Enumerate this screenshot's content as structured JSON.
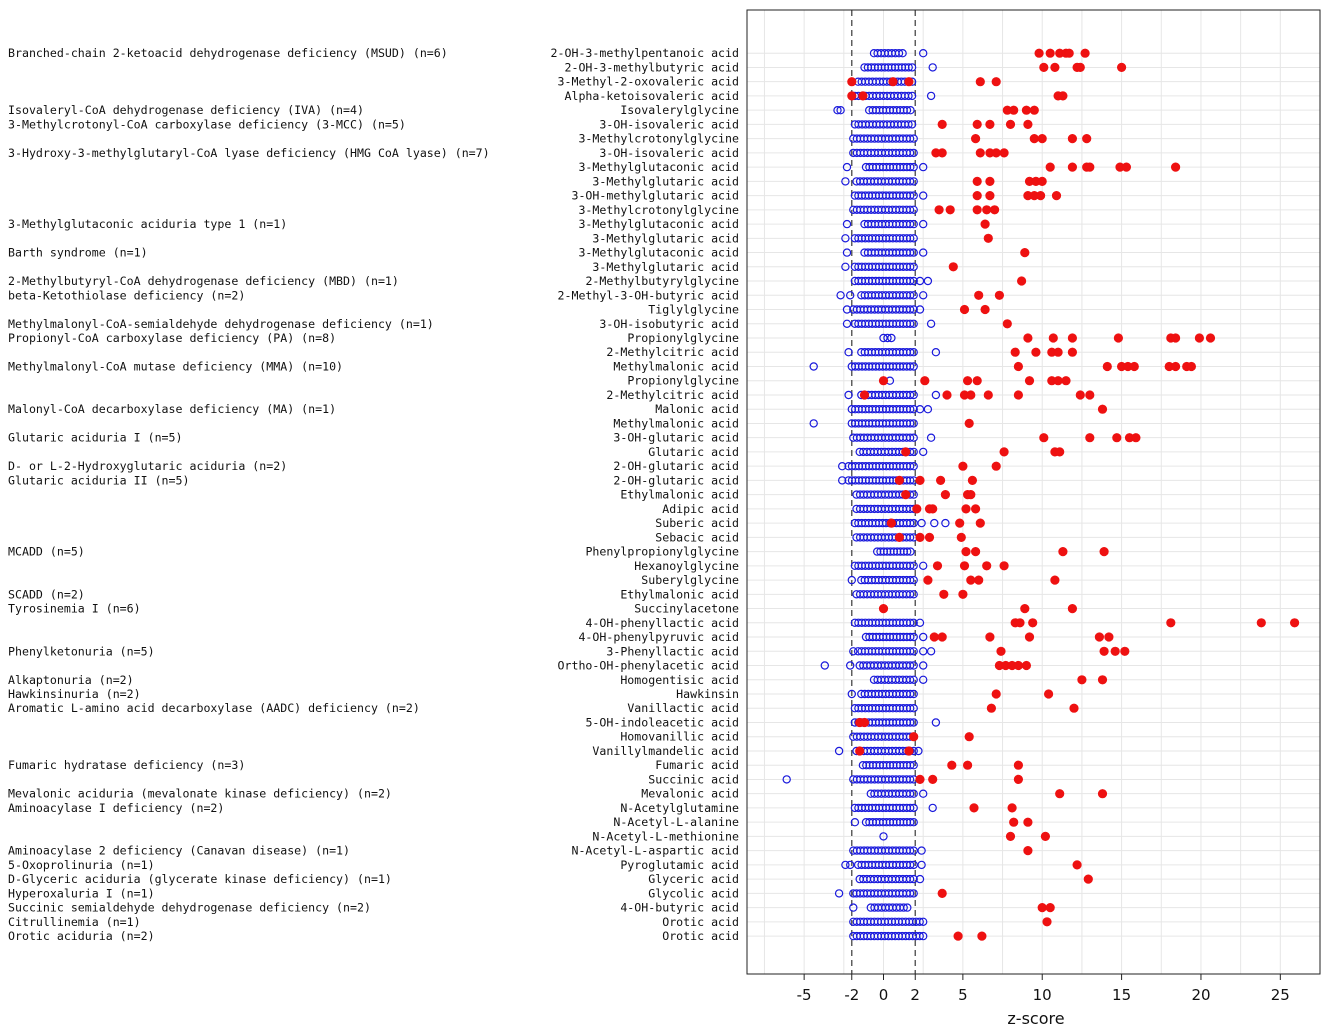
{
  "chart_data": {
    "type": "scatter",
    "xlabel": "z-score",
    "xticks": [
      -5,
      -2,
      0,
      2,
      5,
      10,
      15,
      20,
      25
    ],
    "xlim": [
      -8.6,
      27.5
    ],
    "threshold_lines": [
      -2,
      2
    ],
    "grid": true,
    "colors": {
      "control": "#1a1adc",
      "patient": "#ee1111",
      "grid": "#e6e6e6",
      "threshold": "#555555"
    },
    "groups": [
      {
        "name": "Branched-chain 2-ketoacid dehydrogenase deficiency (MSUD) (n=6)",
        "row": 0
      },
      {
        "name": "Isovaleryl-CoA dehydrogenase deficiency (IVA) (n=4)",
        "row": 4
      },
      {
        "name": "3-Methylcrotonyl-CoA carboxylase deficiency (3-MCC) (n=5)",
        "row": 5
      },
      {
        "name": "3-Hydroxy-3-methylglutaryl-CoA lyase deficiency (HMG CoA lyase) (n=7)",
        "row": 7
      },
      {
        "name": "3-Methylglutaconic aciduria type 1 (n=1)",
        "row": 12
      },
      {
        "name": "Barth syndrome (n=1)",
        "row": 14
      },
      {
        "name": "2-Methylbutyryl-CoA dehydrogenase deficiency (MBD) (n=1)",
        "row": 16
      },
      {
        "name": "beta-Ketothiolase deficiency (n=2)",
        "row": 17
      },
      {
        "name": "Methylmalonyl-CoA-semialdehyde dehydrogenase deficiency (n=1)",
        "row": 19
      },
      {
        "name": "Propionyl-CoA carboxylase deficiency (PA) (n=8)",
        "row": 20
      },
      {
        "name": "Methylmalonyl-CoA mutase deficiency (MMA)  (n=10)",
        "row": 22
      },
      {
        "name": "Malonyl-CoA decarboxylase deficiency (MA) (n=1)",
        "row": 25
      },
      {
        "name": "Glutaric aciduria I (n=5)",
        "row": 27
      },
      {
        "name": "D- or L-2-Hydroxyglutaric aciduria (n=2)",
        "row": 29
      },
      {
        "name": "Glutaric aciduria II (n=5)",
        "row": 30
      },
      {
        "name": "MCADD (n=5)",
        "row": 35
      },
      {
        "name": "SCADD (n=2)",
        "row": 38
      },
      {
        "name": "Tyrosinemia I (n=6)",
        "row": 39
      },
      {
        "name": "Phenylketonuria (n=5)",
        "row": 42
      },
      {
        "name": "Alkaptonuria (n=2)",
        "row": 44
      },
      {
        "name": "Hawkinsinuria (n=2)",
        "row": 45
      },
      {
        "name": "Aromatic L-amino acid decarboxylase (AADC) deficiency (n=2)",
        "row": 46
      },
      {
        "name": "Fumaric hydratase deficiency (n=3)",
        "row": 50
      },
      {
        "name": "Mevalonic aciduria (mevalonate kinase deficiency) (n=2)",
        "row": 52
      },
      {
        "name": "Aminoacylase I deficiency (n=2)",
        "row": 53
      },
      {
        "name": "Aminoacylase 2 deficiency (Canavan disease) (n=1)",
        "row": 56
      },
      {
        "name": "5-Oxoprolinuria  (n=1)",
        "row": 57
      },
      {
        "name": "D-Glyceric aciduria (glycerate kinase deficiency) (n=1)",
        "row": 58
      },
      {
        "name": "Hyperoxaluria I (n=1)",
        "row": 59
      },
      {
        "name": "Succinic semialdehyde dehydrogenase deficiency (n=2)",
        "row": 60
      },
      {
        "name": "Citrullinemia (n=1)",
        "row": 61
      },
      {
        "name": "Orotic aciduria (n=2)",
        "row": 62
      }
    ],
    "rows": [
      {
        "label": "2-OH-3-methylpentanoic acid",
        "cmin": -0.6,
        "cmax": 1.2,
        "cout": [
          2.5
        ],
        "patients": [
          9.8,
          10.5,
          11.1,
          11.5,
          11.7,
          12.7
        ]
      },
      {
        "label": "2-OH-3-methylbutyric acid",
        "cmin": -1.2,
        "cmax": 1.8,
        "cout": [
          3.1
        ],
        "patients": [
          10.1,
          10.8,
          12.2,
          12.4,
          15.0
        ]
      },
      {
        "label": "3-Methyl-2-oxovaleric acid",
        "cmin": -1.6,
        "cmax": 1.8,
        "cout": [],
        "patients": [
          -2.0,
          0.6,
          1.6,
          6.1,
          7.1
        ]
      },
      {
        "label": "Alpha-ketoisovaleric acid",
        "cmin": -1.8,
        "cmax": 1.8,
        "cout": [
          3.0
        ],
        "patients": [
          -2.0,
          -1.3,
          11.0,
          11.3
        ]
      },
      {
        "label": "Isovalerylglycine",
        "cmin": -0.9,
        "cmax": 1.7,
        "cout": [
          -2.9,
          -2.7
        ],
        "patients": [
          7.8,
          8.2,
          9.0,
          9.5
        ]
      },
      {
        "label": "3-OH-isovaleric acid",
        "cmin": -1.8,
        "cmax": 1.8,
        "cout": [],
        "patients": [
          3.7,
          5.9,
          6.7,
          8.0,
          9.1
        ]
      },
      {
        "label": "3-Methylcrotonylglycine",
        "cmin": -1.9,
        "cmax": 1.9,
        "cout": [],
        "patients": [
          5.8,
          9.5,
          10.0,
          11.9,
          12.8
        ]
      },
      {
        "label": "3-OH-isovaleric acid",
        "cmin": -1.9,
        "cmax": 1.9,
        "cout": [],
        "patients": [
          3.3,
          3.7,
          6.1,
          6.7,
          7.1,
          7.6
        ]
      },
      {
        "label": "3-Methylglutaconic acid",
        "cmin": -1.1,
        "cmax": 1.9,
        "cout": [
          -2.3,
          2.5
        ],
        "patients": [
          10.5,
          11.9,
          12.8,
          13.0,
          14.9,
          15.3,
          18.4
        ]
      },
      {
        "label": "3-Methylglutaric acid",
        "cmin": -1.7,
        "cmax": 1.9,
        "cout": [
          -2.4
        ],
        "patients": [
          5.9,
          6.7,
          9.2,
          9.6,
          10.0
        ]
      },
      {
        "label": "3-OH-methylglutaric acid",
        "cmin": -1.8,
        "cmax": 1.9,
        "cout": [
          2.5
        ],
        "patients": [
          5.9,
          6.7,
          9.1,
          9.5,
          9.9,
          10.9
        ]
      },
      {
        "label": "3-Methylcrotonylglycine",
        "cmin": -1.9,
        "cmax": 1.9,
        "cout": [],
        "patients": [
          3.5,
          4.2,
          5.9,
          6.5,
          7.0
        ]
      },
      {
        "label": "3-Methylglutaconic acid",
        "cmin": -1.2,
        "cmax": 1.9,
        "cout": [
          -2.3,
          2.5
        ],
        "patients": [
          6.4
        ]
      },
      {
        "label": "3-Methylglutaric acid",
        "cmin": -1.8,
        "cmax": 1.9,
        "cout": [
          -2.4
        ],
        "patients": [
          6.6
        ]
      },
      {
        "label": "3-Methylglutaconic acid",
        "cmin": -1.2,
        "cmax": 1.9,
        "cout": [
          -2.3,
          2.5
        ],
        "patients": [
          8.9
        ]
      },
      {
        "label": "3-Methylglutaric acid",
        "cmin": -1.8,
        "cmax": 1.9,
        "cout": [
          -2.4
        ],
        "patients": [
          4.4
        ]
      },
      {
        "label": "2-Methylbutyrylglycine",
        "cmin": -1.8,
        "cmax": 1.9,
        "cout": [
          2.3,
          2.8
        ],
        "patients": [
          8.7
        ]
      },
      {
        "label": "2-Methyl-3-OH-butyric acid",
        "cmin": -1.4,
        "cmax": 1.9,
        "cout": [
          -2.7,
          -2.1,
          2.5
        ],
        "patients": [
          6.0,
          7.3
        ]
      },
      {
        "label": "Tiglylglycine",
        "cmin": -1.9,
        "cmax": 1.9,
        "cout": [
          -2.3,
          2.3
        ],
        "patients": [
          5.1,
          6.4
        ]
      },
      {
        "label": "3-OH-isobutyric acid",
        "cmin": -1.8,
        "cmax": 1.9,
        "cout": [
          -2.3,
          3.0
        ],
        "patients": [
          7.8
        ]
      },
      {
        "label": "Propionylglycine",
        "cmin": 0.0,
        "cmax": 0.5,
        "cout": [],
        "patients": [
          9.1,
          10.7,
          11.9,
          14.8,
          18.1,
          18.4,
          19.9,
          20.6
        ]
      },
      {
        "label": "2-Methylcitric acid",
        "cmin": -1.4,
        "cmax": 1.9,
        "cout": [
          -2.2,
          3.3
        ],
        "patients": [
          8.3,
          9.6,
          10.6,
          11.0,
          11.9
        ]
      },
      {
        "label": "Methylmalonic acid",
        "cmin": -2.0,
        "cmax": 1.9,
        "cout": [
          -4.4
        ],
        "patients": [
          8.5,
          14.1,
          15.0,
          15.4,
          15.8,
          18.0,
          18.4,
          19.1,
          19.4
        ]
      },
      {
        "label": "Propionylglycine",
        "cmin": 0.4,
        "cmax": 0.4,
        "cout": [],
        "patients": [
          0.0,
          2.6,
          5.3,
          5.9,
          9.2,
          10.6,
          11.0,
          11.5
        ]
      },
      {
        "label": "2-Methylcitric acid",
        "cmin": -1.4,
        "cmax": 1.9,
        "cout": [
          -2.2,
          3.3
        ],
        "patients": [
          -1.2,
          4.0,
          5.1,
          5.5,
          6.6,
          8.5,
          12.4,
          13.0
        ]
      },
      {
        "label": "Malonic acid",
        "cmin": -2.0,
        "cmax": 1.9,
        "cout": [
          2.3,
          2.8
        ],
        "patients": [
          13.8
        ]
      },
      {
        "label": "Methylmalonic acid",
        "cmin": -2.0,
        "cmax": 1.9,
        "cout": [
          -4.4
        ],
        "patients": [
          5.4
        ]
      },
      {
        "label": "3-OH-glutaric acid",
        "cmin": -1.9,
        "cmax": 1.9,
        "cout": [
          3.0
        ],
        "patients": [
          10.1,
          13.0,
          14.7,
          15.5,
          15.9
        ]
      },
      {
        "label": "Glutaric acid",
        "cmin": -1.5,
        "cmax": 1.9,
        "cout": [
          2.5
        ],
        "patients": [
          1.4,
          7.6,
          10.8,
          11.1
        ]
      },
      {
        "label": "2-OH-glutaric acid",
        "cmin": -2.2,
        "cmax": 1.9,
        "cout": [
          -2.6
        ],
        "patients": [
          5.0,
          7.1
        ]
      },
      {
        "label": "2-OH-glutaric acid",
        "cmin": -2.2,
        "cmax": 1.9,
        "cout": [
          -2.6
        ],
        "patients": [
          1.0,
          2.3,
          3.6,
          5.6
        ]
      },
      {
        "label": "Ethylmalonic acid",
        "cmin": -1.7,
        "cmax": 1.9,
        "cout": [],
        "patients": [
          1.4,
          3.9,
          5.3,
          5.5
        ]
      },
      {
        "label": "Adipic acid",
        "cmin": -1.7,
        "cmax": 1.9,
        "cout": [],
        "patients": [
          2.1,
          2.9,
          3.1,
          5.2,
          5.8
        ]
      },
      {
        "label": "Suberic acid",
        "cmin": -1.8,
        "cmax": 1.9,
        "cout": [
          2.4,
          3.2,
          3.9
        ],
        "patients": [
          0.5,
          4.8,
          6.1
        ]
      },
      {
        "label": "Sebacic acid",
        "cmin": -1.7,
        "cmax": 1.9,
        "cout": [],
        "patients": [
          1.0,
          2.3,
          2.9,
          4.9
        ]
      },
      {
        "label": "Phenylpropionylglycine",
        "cmin": -0.4,
        "cmax": 1.7,
        "cout": [],
        "patients": [
          5.2,
          5.8,
          11.3,
          13.9
        ]
      },
      {
        "label": "Hexanoylglycine",
        "cmin": -1.8,
        "cmax": 1.9,
        "cout": [
          2.5
        ],
        "patients": [
          3.4,
          5.1,
          6.5,
          7.6
        ]
      },
      {
        "label": "Suberylglycine",
        "cmin": -1.4,
        "cmax": 1.9,
        "cout": [
          -2.0
        ],
        "patients": [
          2.8,
          5.5,
          6.0,
          10.8
        ]
      },
      {
        "label": "Ethylmalonic acid",
        "cmin": -1.7,
        "cmax": 1.9,
        "cout": [],
        "patients": [
          3.8,
          5.0
        ]
      },
      {
        "label": "Succinylacetone",
        "cmin": 0.0,
        "cmax": 0.0,
        "cout": [],
        "patients": [
          0.0,
          8.9,
          11.9
        ]
      },
      {
        "label": "4-OH-phenyllactic acid",
        "cmin": -1.8,
        "cmax": 1.9,
        "cout": [
          2.3
        ],
        "patients": [
          8.3,
          8.6,
          9.4,
          18.1,
          23.8,
          25.9
        ]
      },
      {
        "label": "4-OH-phenylpyruvic acid",
        "cmin": -1.1,
        "cmax": 1.9,
        "cout": [
          2.5
        ],
        "patients": [
          3.2,
          3.7,
          6.7,
          9.2,
          13.6,
          14.2
        ]
      },
      {
        "label": "3-Phenyllactic acid",
        "cmin": -1.6,
        "cmax": 1.9,
        "cout": [
          -1.9,
          2.5,
          3.0
        ],
        "patients": [
          7.4,
          13.9,
          14.6,
          15.2
        ]
      },
      {
        "label": "Ortho-OH-phenylacetic acid",
        "cmin": -1.5,
        "cmax": 1.9,
        "cout": [
          -3.7,
          -2.1,
          2.5
        ],
        "patients": [
          7.3,
          7.7,
          8.1,
          8.5,
          9.0
        ]
      },
      {
        "label": "Homogentisic acid",
        "cmin": -0.6,
        "cmax": 1.9,
        "cout": [
          2.5
        ],
        "patients": [
          12.5,
          13.8
        ]
      },
      {
        "label": "Hawkinsin",
        "cmin": -1.4,
        "cmax": 1.9,
        "cout": [
          -2.0
        ],
        "patients": [
          7.1,
          10.4
        ]
      },
      {
        "label": "Vanillactic acid",
        "cmin": -1.8,
        "cmax": 1.9,
        "cout": [],
        "patients": [
          6.8,
          12.0
        ]
      },
      {
        "label": "5-OH-indoleacetic acid",
        "cmin": -1.8,
        "cmax": 1.9,
        "cout": [
          3.3
        ],
        "patients": [
          -1.5,
          -1.2
        ]
      },
      {
        "label": "Homovanillic acid",
        "cmin": -1.9,
        "cmax": 1.9,
        "cout": [],
        "patients": [
          1.9,
          5.4
        ]
      },
      {
        "label": "Vanillylmandelic acid",
        "cmin": -1.7,
        "cmax": 1.9,
        "cout": [
          -2.8,
          2.2
        ],
        "patients": [
          -1.5,
          1.6
        ]
      },
      {
        "label": "Fumaric acid",
        "cmin": -1.3,
        "cmax": 1.9,
        "cout": [],
        "patients": [
          4.3,
          5.3,
          8.5
        ]
      },
      {
        "label": "Succinic acid",
        "cmin": -1.9,
        "cmax": 1.9,
        "cout": [
          -6.1
        ],
        "patients": [
          2.3,
          3.1,
          8.5
        ]
      },
      {
        "label": "Mevalonic acid",
        "cmin": -0.8,
        "cmax": 1.9,
        "cout": [
          2.5
        ],
        "patients": [
          11.1,
          13.8
        ]
      },
      {
        "label": "N-Acetylglutamine",
        "cmin": -1.8,
        "cmax": 1.9,
        "cout": [
          3.1
        ],
        "patients": [
          5.7,
          8.1
        ]
      },
      {
        "label": "N-Acetyl-L-alanine",
        "cmin": -1.1,
        "cmax": 1.9,
        "cout": [
          -1.8
        ],
        "patients": [
          8.2,
          9.1
        ]
      },
      {
        "label": "N-Acetyl-L-methionine",
        "cmin": 0.0,
        "cmax": 0.0,
        "cout": [],
        "patients": [
          8.0,
          10.2
        ]
      },
      {
        "label": "N-Acetyl-L-aspartic acid",
        "cmin": -1.9,
        "cmax": 1.9,
        "cout": [
          2.4
        ],
        "patients": [
          9.1
        ]
      },
      {
        "label": "Pyroglutamic acid",
        "cmin": -1.6,
        "cmax": 1.9,
        "cout": [
          -2.4,
          -2.1,
          2.4
        ],
        "patients": [
          12.2
        ]
      },
      {
        "label": "Glyceric acid",
        "cmin": -1.5,
        "cmax": 1.9,
        "cout": [
          2.3
        ],
        "patients": [
          12.9
        ]
      },
      {
        "label": "Glycolic acid",
        "cmin": -1.7,
        "cmax": 1.9,
        "cout": [
          -2.8,
          -1.9
        ],
        "patients": [
          3.7
        ]
      },
      {
        "label": "4-OH-butyric acid",
        "cmin": -0.8,
        "cmax": 1.5,
        "cout": [
          -1.9
        ],
        "patients": [
          10.0,
          10.5
        ]
      },
      {
        "label": "Orotic acid",
        "cmin": -1.9,
        "cmax": 2.5,
        "cout": [],
        "patients": [
          10.3
        ]
      },
      {
        "label": "Orotic acid",
        "cmin": -1.9,
        "cmax": 2.5,
        "cout": [],
        "patients": [
          4.7,
          6.2
        ]
      }
    ]
  }
}
